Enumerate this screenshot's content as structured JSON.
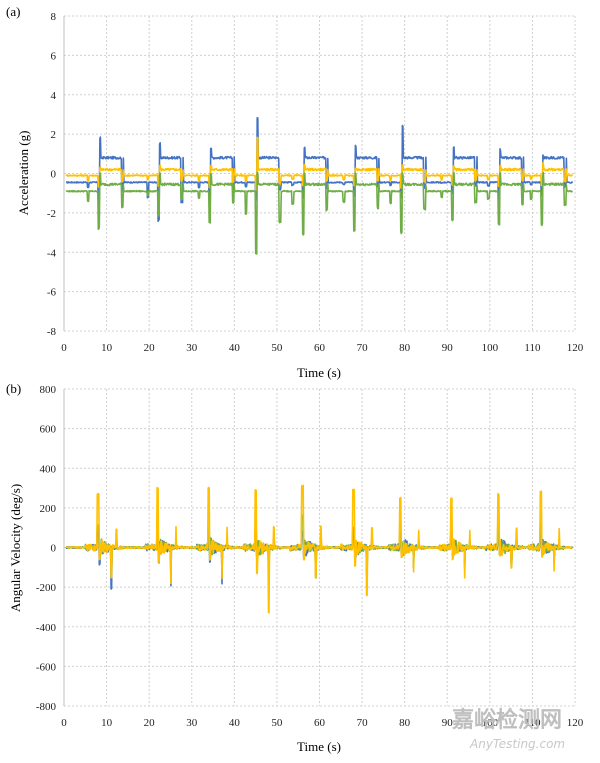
{
  "watermark": {
    "line1": "嘉峪检测网",
    "line2": "AnyTesting.com"
  },
  "colors": {
    "blue": "#4472C4",
    "yellow": "#FFC000",
    "green": "#70AD47",
    "grid": "#d0d0d0"
  },
  "chart_data": [
    {
      "type": "line",
      "panel_label": "(a)",
      "xlabel": "Time (s)",
      "ylabel": "Acceleration (g)",
      "xlim": [
        0,
        120
      ],
      "ylim": [
        -8,
        8
      ],
      "xticks": [
        0,
        10,
        20,
        30,
        40,
        50,
        60,
        70,
        80,
        90,
        100,
        110,
        120
      ],
      "yticks": [
        -8,
        -6,
        -4,
        -2,
        0,
        2,
        4,
        6,
        8
      ],
      "grid": true,
      "events": [
        8,
        22,
        34,
        45,
        56,
        68,
        79,
        91,
        102,
        112
      ],
      "series": [
        {
          "name": "blue",
          "color": "#4472C4",
          "baseline": -0.45,
          "active_level": 0.8,
          "peaks": [
            1.8,
            1.5,
            1.3,
            2.8,
            1.3,
            1.4,
            2.4,
            1.3,
            1.2,
            0.9
          ],
          "troughs": [
            -1.4,
            -2.4,
            -1.4,
            -1.3,
            -1.2,
            -1.1,
            -1.2,
            -1.0,
            -1.3,
            -1.1
          ]
        },
        {
          "name": "yellow",
          "color": "#FFC000",
          "baseline": -0.1,
          "active_level": 0.2,
          "peaks": [
            0.3,
            0.4,
            0.4,
            1.8,
            0.5,
            0.3,
            0.4,
            0.4,
            0.4,
            0.5
          ],
          "troughs": [
            -0.7,
            -0.6,
            -0.7,
            -0.8,
            -0.6,
            -0.6,
            -0.7,
            -0.6,
            -0.6,
            -0.6
          ]
        },
        {
          "name": "green",
          "color": "#70AD47",
          "baseline": -0.9,
          "active_level": -0.55,
          "peaks": [
            0.0,
            0.0,
            0.0,
            0.0,
            0.0,
            0.0,
            0.0,
            0.0,
            0.0,
            0.0
          ],
          "troughs": [
            -2.8,
            -2.2,
            -2.5,
            -4.1,
            -3.1,
            -2.9,
            -3.0,
            -2.4,
            -2.6,
            -2.6
          ]
        }
      ]
    },
    {
      "type": "line",
      "panel_label": "(b)",
      "xlabel": "Time (s)",
      "ylabel": "Angular Velocity (deg/s)",
      "xlim": [
        0,
        120
      ],
      "ylim": [
        -800,
        800
      ],
      "xticks": [
        0,
        10,
        20,
        30,
        40,
        50,
        60,
        70,
        80,
        90,
        100,
        110,
        120
      ],
      "yticks": [
        -800,
        -600,
        -400,
        -200,
        0,
        200,
        400,
        600,
        800
      ],
      "grid": true,
      "events": [
        8,
        22,
        34,
        45,
        56,
        68,
        79,
        91,
        102,
        112
      ],
      "series": [
        {
          "name": "blue",
          "color": "#4472C4",
          "baseline": 0,
          "peaks": [
            100,
            80,
            90,
            80,
            80,
            80,
            60,
            70,
            70,
            50
          ],
          "troughs": [
            -210,
            -190,
            -180,
            -120,
            -110,
            -130,
            -100,
            -100,
            -90,
            -80
          ]
        },
        {
          "name": "green",
          "color": "#70AD47",
          "baseline": 0,
          "peaks": [
            110,
            120,
            110,
            100,
            160,
            100,
            120,
            110,
            140,
            120
          ],
          "troughs": [
            -120,
            -110,
            -100,
            -110,
            -150,
            -90,
            -100,
            -90,
            -80,
            -70
          ]
        },
        {
          "name": "yellow",
          "color": "#FFC000",
          "baseline": 0,
          "peaks": [
            270,
            300,
            300,
            290,
            310,
            290,
            250,
            250,
            270,
            280
          ],
          "troughs": [
            -150,
            -180,
            -160,
            -330,
            -150,
            -240,
            -120,
            -150,
            -100,
            -120
          ]
        }
      ]
    }
  ]
}
